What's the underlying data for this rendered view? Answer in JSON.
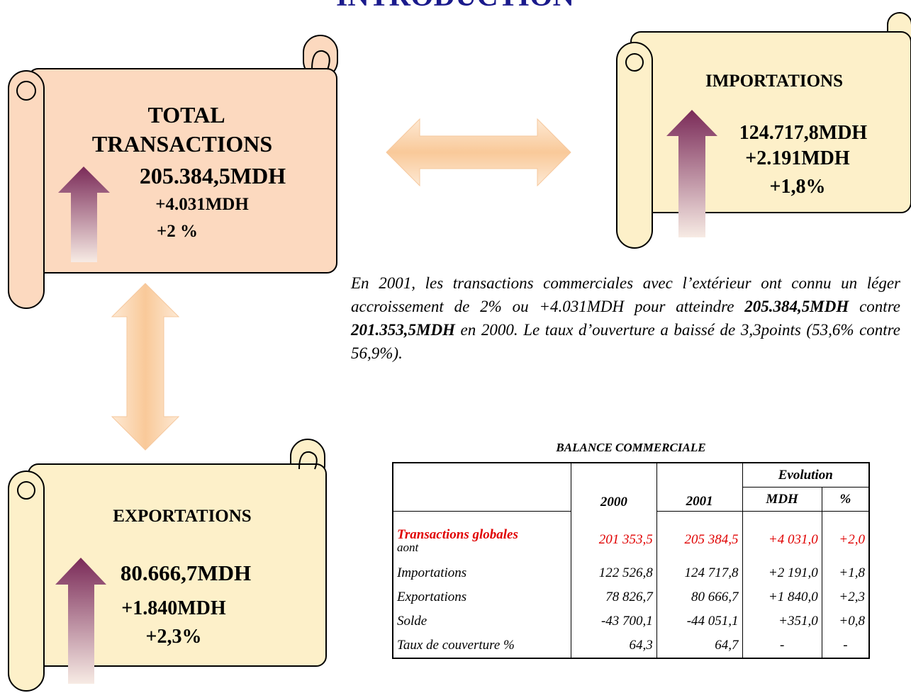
{
  "header": {
    "title": "INTRODUCTION"
  },
  "panels": {
    "total": {
      "lines": [
        "TOTAL",
        "TRANSACTIONS",
        "205.384,5MDH",
        "+4.031MDH",
        "+2 %"
      ]
    },
    "imports": {
      "lines": [
        "IMPORTATIONS",
        "124.717,8MDH",
        "+2.191MDH",
        "+1,8%"
      ]
    },
    "exports": {
      "lines": [
        "EXPORTATIONS",
        "80.666,7MDH",
        "+1.840MDH",
        "+2,3%"
      ]
    }
  },
  "paragraph": {
    "parts": [
      "En 2001, les transactions commerciales avec l’extérieur ont connu un léger accroissement de 2% ou +4.031MDH  pour atteindre ",
      "205.384,5MDH",
      "  contre  ",
      "201.353,5MDH",
      " en 2000. Le taux d’ouverture a baissé de 3,3points (53,6% contre 56,9%)."
    ]
  },
  "table": {
    "title": "BALANCE COMMERCIALE",
    "group_header": "Evolution",
    "columns": [
      "2000",
      "2001",
      "MDH",
      "%"
    ],
    "rows": [
      {
        "label": "Transactions globales",
        "note": "aont",
        "cells": [
          "201 353,5",
          "205 384,5",
          "+4 031,0",
          "+2,0"
        ]
      },
      {
        "label": "Importations",
        "cells": [
          "122 526,8",
          "124 717,8",
          "+2 191,0",
          "+1,8"
        ]
      },
      {
        "label": "Exportations",
        "cells": [
          "78 826,7",
          "80 666,7",
          "+1 840,0",
          "+2,3"
        ]
      },
      {
        "label": "Solde",
        "cells": [
          "-43 700,1",
          "-44 051,1",
          "+351,0",
          "+0,8"
        ]
      },
      {
        "label": "Taux de couverture %",
        "cells": [
          "64,3",
          "64,7",
          "-",
          "-"
        ]
      }
    ]
  }
}
